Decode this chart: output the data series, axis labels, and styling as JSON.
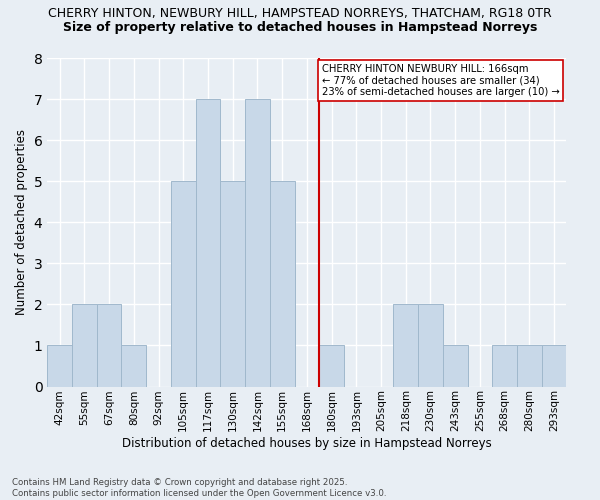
{
  "title_line1": "CHERRY HINTON, NEWBURY HILL, HAMPSTEAD NORREYS, THATCHAM, RG18 0TR",
  "title_line2": "Size of property relative to detached houses in Hampstead Norreys",
  "xlabel": "Distribution of detached houses by size in Hampstead Norreys",
  "ylabel": "Number of detached properties",
  "footnote": "Contains HM Land Registry data © Crown copyright and database right 2025.\nContains public sector information licensed under the Open Government Licence v3.0.",
  "bin_labels": [
    "42sqm",
    "55sqm",
    "67sqm",
    "80sqm",
    "92sqm",
    "105sqm",
    "117sqm",
    "130sqm",
    "142sqm",
    "155sqm",
    "168sqm",
    "180sqm",
    "193sqm",
    "205sqm",
    "218sqm",
    "230sqm",
    "243sqm",
    "255sqm",
    "268sqm",
    "280sqm",
    "293sqm"
  ],
  "counts": [
    1,
    2,
    2,
    1,
    0,
    5,
    7,
    5,
    7,
    5,
    0,
    1,
    0,
    0,
    2,
    2,
    1,
    0,
    1,
    1,
    1
  ],
  "bar_color": "#c8d8e8",
  "bar_edgecolor": "#a0b8cc",
  "vline_index": 10,
  "vline_color": "#cc0000",
  "annotation_text": "CHERRY HINTON NEWBURY HILL: 166sqm\n← 77% of detached houses are smaller (34)\n23% of semi-detached houses are larger (10) →",
  "annotation_box_color": "#ffffff",
  "annotation_box_edgecolor": "#cc0000",
  "ylim": [
    0,
    8
  ],
  "yticks": [
    0,
    1,
    2,
    3,
    4,
    5,
    6,
    7,
    8
  ],
  "background_color": "#e8eef4",
  "axes_background": "#e8eef4",
  "grid_color": "#ffffff",
  "title_fontsize": 9,
  "subtitle_fontsize": 9
}
